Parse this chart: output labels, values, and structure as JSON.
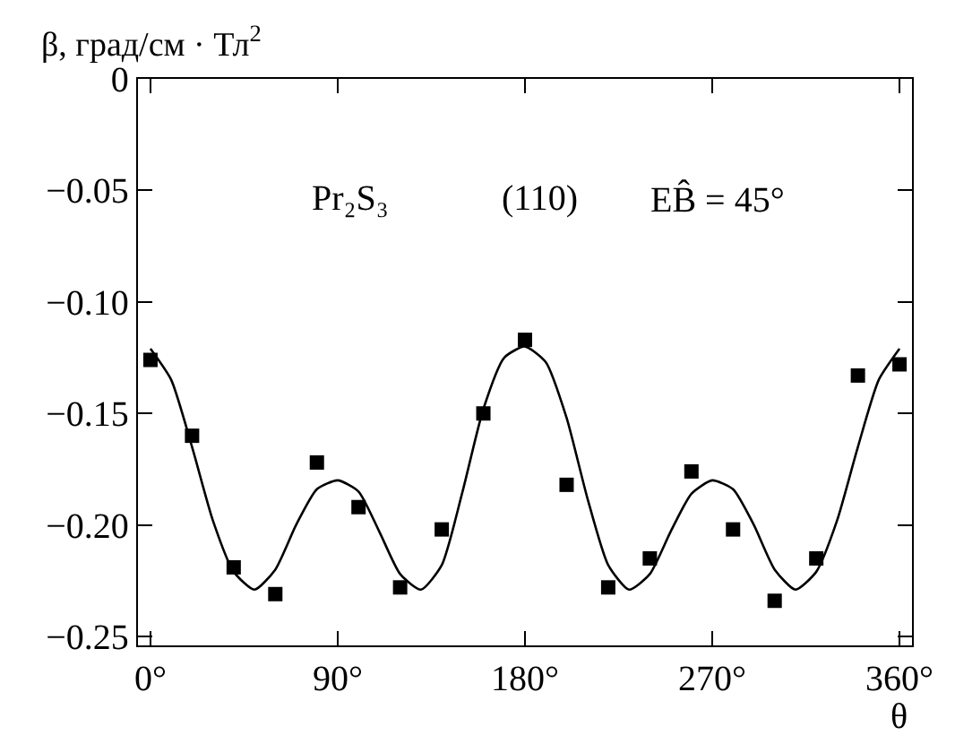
{
  "chart_data": {
    "type": "scatter",
    "xlabel": "θ",
    "ylabel": "β, град/см · Тл$^{2}$",
    "annotations": [
      "Pr₂S₃",
      "(110)",
      "EB̂ = 45°"
    ],
    "xlim": [
      -6,
      366
    ],
    "ylim": [
      -0.254,
      0
    ],
    "xticks": [
      {
        "value": 0,
        "label": "0°"
      },
      {
        "value": 90,
        "label": "90°"
      },
      {
        "value": 180,
        "label": "180°"
      },
      {
        "value": 270,
        "label": "270°"
      },
      {
        "value": 360,
        "label": "360°"
      }
    ],
    "yticks": [
      {
        "value": 0,
        "label": "0"
      },
      {
        "value": -0.05,
        "label": "−0.05"
      },
      {
        "value": -0.1,
        "label": "−0.10"
      },
      {
        "value": -0.15,
        "label": "−0.15"
      },
      {
        "value": -0.2,
        "label": "−0.20"
      },
      {
        "value": -0.25,
        "label": "−0.25"
      }
    ],
    "series": [
      {
        "marker": "square",
        "color": "#000000",
        "x": [
          0,
          20,
          40,
          60,
          80,
          100,
          120,
          140,
          160,
          180,
          200,
          220,
          240,
          260,
          280,
          300,
          320,
          340,
          360
        ],
        "values": [
          -0.126,
          -0.16,
          -0.219,
          -0.231,
          -0.172,
          -0.192,
          -0.228,
          -0.202,
          -0.15,
          -0.117,
          -0.182,
          -0.228,
          -0.215,
          -0.176,
          -0.202,
          -0.234,
          -0.215,
          -0.133,
          -0.128
        ]
      },
      {
        "type": "line",
        "marker": "none",
        "line_style": "solid",
        "color": "#000000",
        "x": [
          0,
          10,
          20,
          30,
          40,
          50,
          60,
          70,
          80,
          90,
          100,
          110,
          120,
          130,
          140,
          150,
          160,
          170,
          180,
          190,
          200,
          210,
          220,
          230,
          240,
          250,
          260,
          270,
          280,
          290,
          300,
          310,
          320,
          330,
          340,
          350,
          360
        ],
        "values": [
          -0.121,
          -0.135,
          -0.165,
          -0.198,
          -0.221,
          -0.229,
          -0.22,
          -0.2,
          -0.184,
          -0.18,
          -0.185,
          -0.203,
          -0.222,
          -0.229,
          -0.218,
          -0.185,
          -0.148,
          -0.125,
          -0.12,
          -0.127,
          -0.152,
          -0.188,
          -0.218,
          -0.229,
          -0.222,
          -0.203,
          -0.186,
          -0.18,
          -0.184,
          -0.2,
          -0.22,
          -0.229,
          -0.221,
          -0.198,
          -0.165,
          -0.135,
          -0.121
        ]
      }
    ]
  }
}
